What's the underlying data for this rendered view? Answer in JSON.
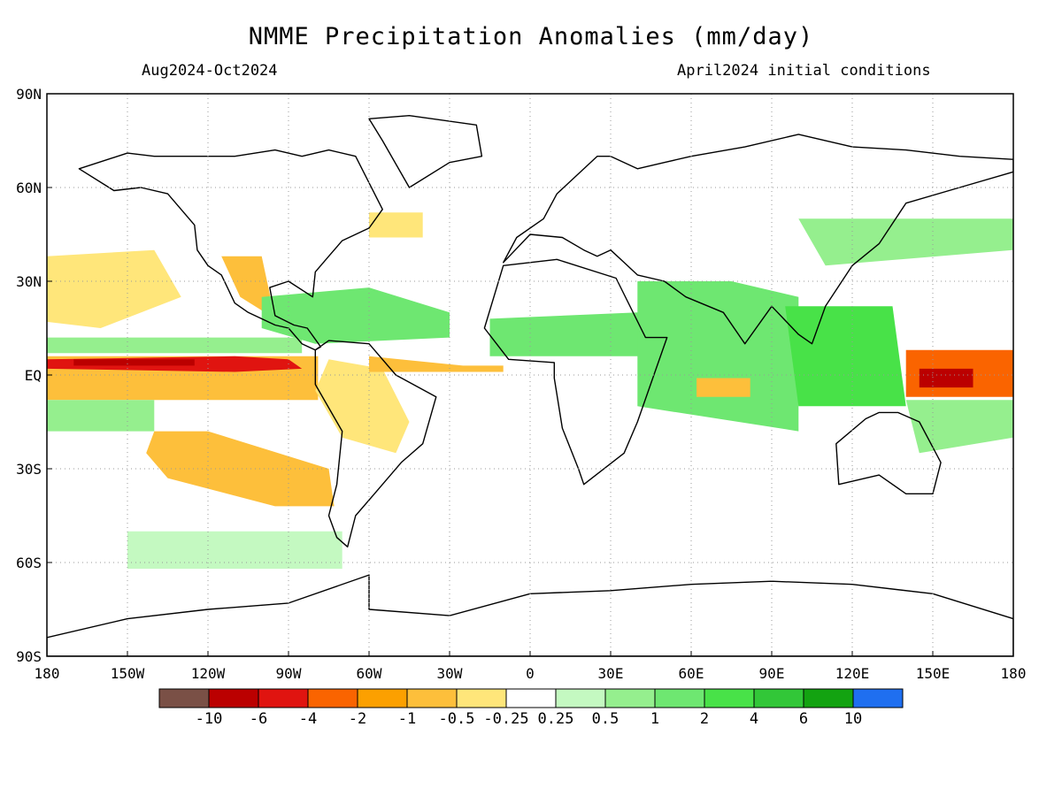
{
  "header": {
    "title": "NMME Precipitation Anomalies (mm/day)",
    "period": "Aug2024-Oct2024",
    "initial_conditions": "April2024 initial conditions"
  },
  "axes": {
    "x_ticks": [
      "180",
      "150W",
      "120W",
      "90W",
      "60W",
      "30W",
      "0",
      "30E",
      "60E",
      "90E",
      "120E",
      "150E",
      "180"
    ],
    "y_ticks": [
      "90N",
      "60N",
      "30N",
      "EQ",
      "30S",
      "60S",
      "90S"
    ]
  },
  "colorbar": {
    "colors": [
      "#7a5046",
      "#bb0000",
      "#e01410",
      "#fa6400",
      "#fca000",
      "#fdbf3b",
      "#ffe67a",
      "#ffffff",
      "#c4f9c1",
      "#95ef8e",
      "#6ee771",
      "#48e248",
      "#32c738",
      "#13a311",
      "#1f6ff0"
    ],
    "labels": [
      "-10",
      "-6",
      "-4",
      "-2",
      "-1",
      "-0.5",
      "-0.25",
      "0.25",
      "0.5",
      "1",
      "2",
      "4",
      "6",
      "10"
    ]
  },
  "anomaly_regions": [
    {
      "label": "Equatorial E Pacific dry",
      "color": "#fdbf3b",
      "lon": [
        -180,
        -79,
        -79,
        -180
      ],
      "lat": [
        6,
        6,
        -8,
        -8
      ]
    },
    {
      "label": "Equatorial E Pacific core",
      "color": "#e01410",
      "lon": [
        -180,
        -110,
        -90,
        -85,
        -110,
        -180
      ],
      "lat": [
        5,
        6,
        5,
        2,
        1,
        2
      ]
    },
    {
      "label": "Equatorial core deep",
      "color": "#bb0000",
      "lon": [
        -170,
        -125,
        -125,
        -170
      ],
      "lat": [
        5,
        5,
        3,
        3
      ]
    },
    {
      "label": "ITCZ Pacific wet",
      "color": "#95ef8e",
      "lon": [
        -180,
        -85,
        -85,
        -180
      ],
      "lat": [
        12,
        12,
        7,
        7
      ]
    },
    {
      "label": "South Pacific dry band",
      "color": "#fdbf3b",
      "lon": [
        -140,
        -120,
        -75,
        -73,
        -95,
        -135,
        -143
      ],
      "lat": [
        -18,
        -18,
        -30,
        -42,
        -42,
        -33,
        -25
      ]
    },
    {
      "label": "North Pacific dry",
      "color": "#ffe67a",
      "lon": [
        -180,
        -140,
        -130,
        -160,
        -180
      ],
      "lat": [
        38,
        40,
        25,
        15,
        17
      ]
    },
    {
      "label": "Mexico dry",
      "color": "#fdbf3b",
      "lon": [
        -115,
        -100,
        -95,
        -108
      ],
      "lat": [
        38,
        38,
        18,
        25
      ]
    },
    {
      "label": "Amazon dry",
      "color": "#ffe67a",
      "lon": [
        -75,
        -55,
        -45,
        -50,
        -70,
        -80
      ],
      "lat": [
        5,
        2,
        -15,
        -25,
        -20,
        -5
      ]
    },
    {
      "label": "Caribbean wet",
      "color": "#6ee771",
      "lon": [
        -100,
        -60,
        -30,
        -30,
        -80,
        -100
      ],
      "lat": [
        25,
        28,
        20,
        12,
        10,
        15
      ]
    },
    {
      "label": "Atlantic ITCZ dry",
      "color": "#fdbf3b",
      "lon": [
        -60,
        -25,
        -10,
        -10,
        -60
      ],
      "lat": [
        6,
        3,
        3,
        1,
        1
      ]
    },
    {
      "label": "Sahel wet",
      "color": "#6ee771",
      "lon": [
        -15,
        40,
        55,
        55,
        -15
      ],
      "lat": [
        18,
        20,
        18,
        6,
        6
      ]
    },
    {
      "label": "Indian Ocean wet",
      "color": "#6ee771",
      "lon": [
        40,
        75,
        100,
        100,
        40
      ],
      "lat": [
        30,
        30,
        25,
        -18,
        -10
      ]
    },
    {
      "label": "Indian Ocean dry",
      "color": "#fdbf3b",
      "lon": [
        62,
        82,
        82,
        62
      ],
      "lat": [
        -1,
        -1,
        -7,
        -7
      ]
    },
    {
      "label": "Maritime Continent wet",
      "color": "#48e248",
      "lon": [
        95,
        135,
        140,
        100
      ],
      "lat": [
        22,
        22,
        -10,
        -10
      ]
    },
    {
      "label": "West Pacific dry",
      "color": "#fa6400",
      "lon": [
        140,
        180,
        180,
        140
      ],
      "lat": [
        8,
        8,
        -7,
        -7
      ]
    },
    {
      "label": "West Pacific core",
      "color": "#bb0000",
      "lon": [
        145,
        165,
        165,
        145
      ],
      "lat": [
        2,
        2,
        -4,
        -4
      ]
    },
    {
      "label": "North Pacific wet",
      "color": "#95ef8e",
      "lon": [
        100,
        180,
        180,
        110
      ],
      "lat": [
        50,
        50,
        40,
        35
      ]
    },
    {
      "label": "South Pacific wet",
      "color": "#95ef8e",
      "lon": [
        140,
        180,
        180,
        145
      ],
      "lat": [
        -8,
        -8,
        -20,
        -25
      ]
    },
    {
      "label": "Southern Ocean wet",
      "color": "#c4f9c1",
      "lon": [
        -150,
        -70,
        -70,
        -150
      ],
      "lat": [
        -50,
        -50,
        -62,
        -62
      ]
    },
    {
      "label": "Eastern Pacific wet",
      "color": "#95ef8e",
      "lon": [
        -180,
        -140,
        -140,
        -180
      ],
      "lat": [
        -8,
        -8,
        -18,
        -18
      ]
    },
    {
      "label": "North Atlantic dry",
      "color": "#ffe67a",
      "lon": [
        -60,
        -40,
        -40,
        -60
      ],
      "lat": [
        52,
        52,
        44,
        44
      ]
    }
  ],
  "landmasses": [
    {
      "name": "north-america",
      "lon": [
        -168,
        -150,
        -140,
        -125,
        -110,
        -95,
        -85,
        -75,
        -65,
        -55,
        -60,
        -70,
        -75,
        -80,
        -81,
        -90,
        -97,
        -95,
        -88,
        -83,
        -78,
        -80,
        -85,
        -90,
        -95,
        -105,
        -110,
        -115,
        -120,
        -124,
        -125,
        -135,
        -145,
        -155,
        -168
      ],
      "lat": [
        66,
        71,
        70,
        70,
        70,
        72,
        70,
        72,
        70,
        53,
        47,
        43,
        38,
        33,
        25,
        30,
        28,
        19,
        16,
        15,
        9,
        8,
        10,
        15,
        16,
        20,
        23,
        32,
        35,
        40,
        48,
        58,
        60,
        59,
        66
      ]
    },
    {
      "name": "greenland",
      "lon": [
        -60,
        -45,
        -20,
        -18,
        -30,
        -45,
        -55
      ],
      "lat": [
        82,
        83,
        80,
        70,
        68,
        60,
        75
      ]
    },
    {
      "name": "south-america",
      "lon": [
        -80,
        -75,
        -60,
        -50,
        -35,
        -40,
        -48,
        -58,
        -65,
        -68,
        -72,
        -75,
        -72,
        -70,
        -72,
        -80
      ],
      "lat": [
        8,
        11,
        10,
        0,
        -7,
        -22,
        -28,
        -38,
        -45,
        -55,
        -52,
        -45,
        -35,
        -18,
        -15,
        -3
      ]
    },
    {
      "name": "africa",
      "lon": [
        -17,
        -10,
        10,
        32,
        43,
        51,
        40,
        35,
        20,
        18,
        12,
        9,
        9,
        -8,
        -17
      ],
      "lat": [
        15,
        35,
        37,
        31,
        12,
        12,
        -15,
        -25,
        -35,
        -30,
        -17,
        -1,
        4,
        5,
        15
      ]
    },
    {
      "name": "eurasia",
      "lon": [
        -10,
        -5,
        5,
        10,
        25,
        30,
        40,
        50,
        60,
        80,
        100,
        120,
        140,
        160,
        180,
        180,
        160,
        140,
        130,
        120,
        110,
        105,
        100,
        90,
        80,
        72,
        58,
        50,
        40,
        35,
        30,
        25,
        20,
        12,
        0,
        -10
      ],
      "lat": [
        36,
        44,
        50,
        58,
        70,
        70,
        66,
        68,
        70,
        73,
        77,
        73,
        72,
        70,
        69,
        65,
        60,
        55,
        42,
        35,
        22,
        10,
        13,
        22,
        10,
        20,
        25,
        30,
        32,
        36,
        40,
        38,
        40,
        44,
        45,
        36
      ]
    },
    {
      "name": "australia",
      "lon": [
        114,
        125,
        130,
        137,
        145,
        153,
        150,
        140,
        130,
        115
      ],
      "lat": [
        -22,
        -14,
        -12,
        -12,
        -15,
        -28,
        -38,
        -38,
        -32,
        -35
      ]
    },
    {
      "name": "antarctica",
      "lon": [
        -180,
        -150,
        -120,
        -90,
        -60,
        -60,
        -30,
        0,
        30,
        60,
        90,
        120,
        150,
        180,
        180,
        -180
      ],
      "lat": [
        -84,
        -78,
        -75,
        -73,
        -64,
        -75,
        -77,
        -70,
        -69,
        -67,
        -66,
        -67,
        -70,
        -78,
        -90,
        -90
      ]
    }
  ]
}
